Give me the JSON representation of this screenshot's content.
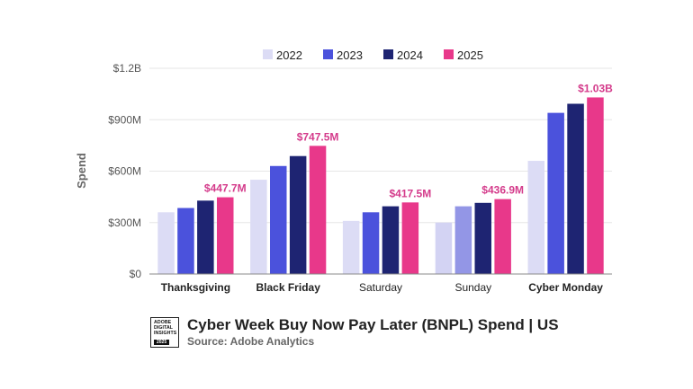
{
  "chart_data": {
    "type": "bar",
    "ylabel": "Spend",
    "xlabel": "",
    "ylim": [
      0,
      1200
    ],
    "yticks": [
      0,
      300,
      600,
      900,
      1200
    ],
    "ytick_labels": [
      "$0",
      "$300M",
      "$600M",
      "$900M",
      "$1.2B"
    ],
    "grid": true,
    "legend_position": "top-center",
    "categories": [
      "Thanksgiving",
      "Black Friday",
      "Saturday",
      "Sunday",
      "Cyber Monday"
    ],
    "category_bold": [
      true,
      true,
      false,
      false,
      true
    ],
    "series": [
      {
        "name": "2022",
        "color": "#dcdcf5",
        "values": [
          360,
          550,
          310,
          300,
          660
        ]
      },
      {
        "name": "2023",
        "color": "#4b52dc",
        "values": [
          385,
          630,
          360,
          395,
          940
        ]
      },
      {
        "name": "2024",
        "color": "#1e2472",
        "values": [
          428,
          688,
          395,
          415,
          993
        ]
      },
      {
        "name": "2025",
        "color": "#e8388a",
        "values": [
          447.7,
          747.5,
          417.5,
          436.9,
          1030
        ]
      }
    ],
    "series_overrides": [
      {
        "series": 0,
        "index": 3,
        "color": "#d3d3f3"
      },
      {
        "series": 1,
        "index": 3,
        "color": "#9396e6"
      }
    ],
    "annotations": [
      {
        "series": 3,
        "index": 0,
        "text": "$447.7M"
      },
      {
        "series": 3,
        "index": 1,
        "text": "$747.5M"
      },
      {
        "series": 3,
        "index": 2,
        "text": "$417.5M"
      },
      {
        "series": 3,
        "index": 3,
        "text": "$436.9M"
      },
      {
        "series": 3,
        "index": 4,
        "text": "$1.03B"
      }
    ],
    "title": "Cyber Week Buy Now Pay Later (BNPL) Spend | US",
    "subtitle": "Source: Adobe Analytics"
  },
  "logo": {
    "lines": [
      "ADOBE",
      "DIGITAL",
      "INSIGHTS"
    ],
    "year": "2025"
  },
  "colors": {
    "axis": "#888888",
    "grid": "#e6e6e6",
    "annotation": "#d43b8b"
  }
}
